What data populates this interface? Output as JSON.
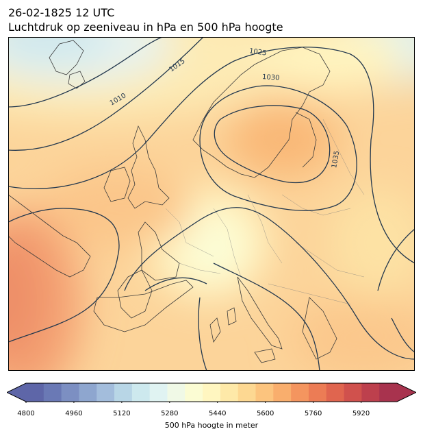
{
  "header": {
    "title_line1": "26-02-1825 12 UTC",
    "title_line2": "Luchtdruk op zeeniveau in hPa en 500 hPa hoogte"
  },
  "map": {
    "isobar_labels": [
      "1010",
      "1015",
      "1025",
      "1030",
      "1035"
    ],
    "colormap": "RdYlBu_r",
    "fill_level_min": 4800,
    "fill_level_max": 6040,
    "fill_level_step": 40
  },
  "colorbar": {
    "label": "500 hPa hoogte in meter",
    "ticks": [
      "4800",
      "4960",
      "5120",
      "5280",
      "5440",
      "5600",
      "5760",
      "5920"
    ],
    "colors": [
      "#5e66a8",
      "#6a79b5",
      "#7c8fc2",
      "#8ea6cf",
      "#a3bddc",
      "#b8d6e6",
      "#cde9ee",
      "#e0f3f2",
      "#f0f9e6",
      "#fbfcd3",
      "#fff6c0",
      "#fee9a8",
      "#fdd892",
      "#fcc47e",
      "#f9ae6d",
      "#f4955f",
      "#ec7c55",
      "#e0654f",
      "#d0514d",
      "#bd404d",
      "#a8334e"
    ]
  }
}
